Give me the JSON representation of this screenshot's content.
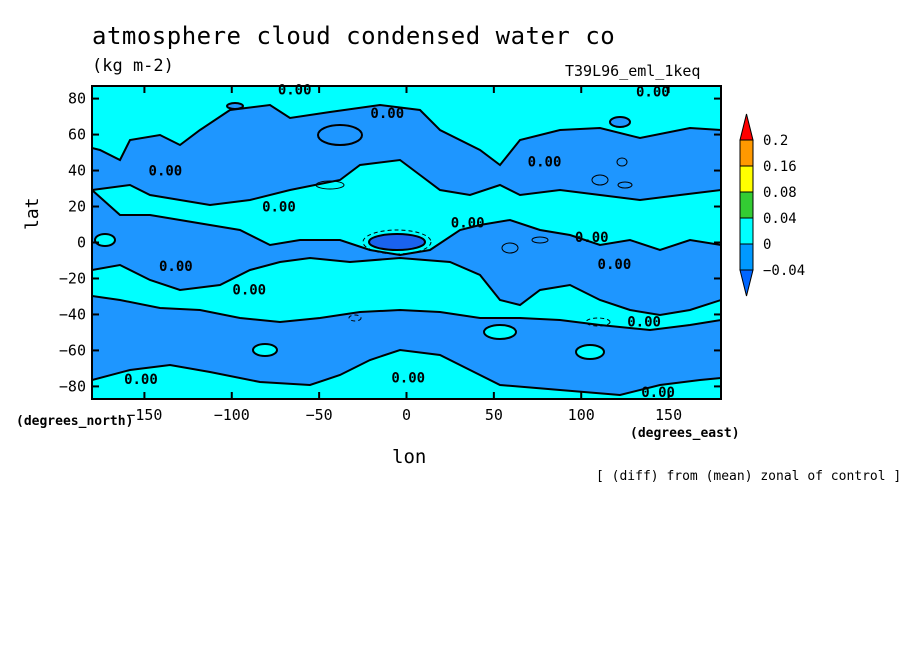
{
  "chart_data": {
    "type": "heatmap",
    "title": "atmosphere cloud condensed water co",
    "units": "(kg m-2)",
    "run_label": "T39L96_eml_1keq",
    "xlabel": "lon",
    "ylabel": "lat",
    "x_units_label": "(degrees_east)",
    "y_units_label": "(degrees_north)",
    "footnote": "[ (diff) from (mean) zonal of control ]",
    "xlim": [
      -180,
      180
    ],
    "ylim": [
      -87,
      87
    ],
    "x_ticks": [
      -150,
      -100,
      -50,
      0,
      50,
      100,
      150
    ],
    "y_ticks": [
      -80,
      -60,
      -40,
      -20,
      0,
      20,
      40,
      60,
      80
    ],
    "contour_labels": [
      {
        "text": "0.00",
        "lon": -64,
        "lat": 85
      },
      {
        "text": "0.00",
        "lon": -11,
        "lat": 72
      },
      {
        "text": "0.00",
        "lon": 141,
        "lat": 84
      },
      {
        "text": "0.00",
        "lon": -138,
        "lat": 40
      },
      {
        "text": "0.00",
        "lon": 79,
        "lat": 45
      },
      {
        "text": "0.00",
        "lon": -73,
        "lat": 20
      },
      {
        "text": "0.00",
        "lon": 35,
        "lat": 11
      },
      {
        "text": "0.00",
        "lon": 106,
        "lat": 3
      },
      {
        "text": "0.00",
        "lon": -132,
        "lat": -13
      },
      {
        "text": "0.00",
        "lon": 119,
        "lat": -12
      },
      {
        "text": "0.00",
        "lon": -90,
        "lat": -26
      },
      {
        "text": "0.00",
        "lon": 136,
        "lat": -44
      },
      {
        "text": "0.00",
        "lon": -152,
        "lat": -76
      },
      {
        "text": "0.00",
        "lon": 1,
        "lat": -75
      },
      {
        "text": "0.00",
        "lon": 144,
        "lat": -83
      }
    ],
    "colorbar": {
      "levels": [
        "0.2",
        "0.16",
        "0.08",
        "0.04",
        "0",
        "-0.04"
      ],
      "colors": [
        "#ff0000",
        "#ff9900",
        "#ffff00",
        "#33cc33",
        "#00ffff",
        "#0099ff",
        "#0066ff"
      ]
    },
    "field_colors": {
      "positive": "#00ffff",
      "zero_band": "#1e96ff",
      "negative": "#1a62ee"
    }
  }
}
